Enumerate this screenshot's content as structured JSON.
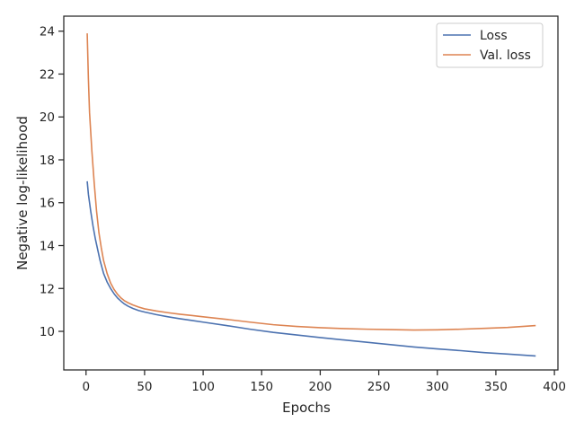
{
  "chart_data": {
    "type": "line",
    "xlabel": "Epochs",
    "ylabel": "Negative log-likelihood",
    "xlim": [
      -19,
      403
    ],
    "ylim": [
      8.2,
      24.7
    ],
    "xticks": [
      0,
      50,
      100,
      150,
      200,
      250,
      300,
      350,
      400
    ],
    "yticks": [
      10,
      12,
      14,
      16,
      18,
      20,
      22,
      24
    ],
    "grid": false,
    "legend_position": "top-right",
    "series": [
      {
        "name": "Loss",
        "color": "#4c72b0",
        "x": [
          1,
          2,
          4,
          6,
          8,
          10,
          12,
          15,
          18,
          21,
          24,
          27,
          30,
          33,
          36,
          40,
          45,
          50,
          60,
          70,
          80,
          90,
          100,
          120,
          140,
          160,
          180,
          200,
          220,
          240,
          260,
          280,
          300,
          320,
          340,
          360,
          384
        ],
        "y": [
          17.0,
          16.4,
          15.6,
          14.9,
          14.3,
          13.8,
          13.3,
          12.7,
          12.3,
          12.0,
          11.75,
          11.55,
          11.4,
          11.27,
          11.17,
          11.07,
          10.97,
          10.9,
          10.78,
          10.68,
          10.59,
          10.51,
          10.43,
          10.27,
          10.1,
          9.95,
          9.83,
          9.71,
          9.6,
          9.49,
          9.38,
          9.27,
          9.18,
          9.1,
          9.01,
          8.94,
          8.85
        ]
      },
      {
        "name": "Val. loss",
        "color": "#dd8452",
        "x": [
          1,
          2,
          3,
          5,
          7,
          9,
          11,
          13,
          15,
          18,
          21,
          24,
          27,
          30,
          33,
          36,
          40,
          45,
          50,
          60,
          70,
          80,
          90,
          100,
          120,
          140,
          160,
          180,
          200,
          220,
          240,
          260,
          280,
          300,
          320,
          340,
          360,
          384
        ],
        "y": [
          23.9,
          21.8,
          20.2,
          18.4,
          16.9,
          15.6,
          14.6,
          13.9,
          13.3,
          12.7,
          12.25,
          11.95,
          11.72,
          11.55,
          11.42,
          11.33,
          11.23,
          11.13,
          11.05,
          10.95,
          10.87,
          10.8,
          10.74,
          10.68,
          10.56,
          10.43,
          10.31,
          10.23,
          10.17,
          10.13,
          10.1,
          10.08,
          10.06,
          10.07,
          10.1,
          10.14,
          10.18,
          10.27
        ]
      }
    ]
  }
}
